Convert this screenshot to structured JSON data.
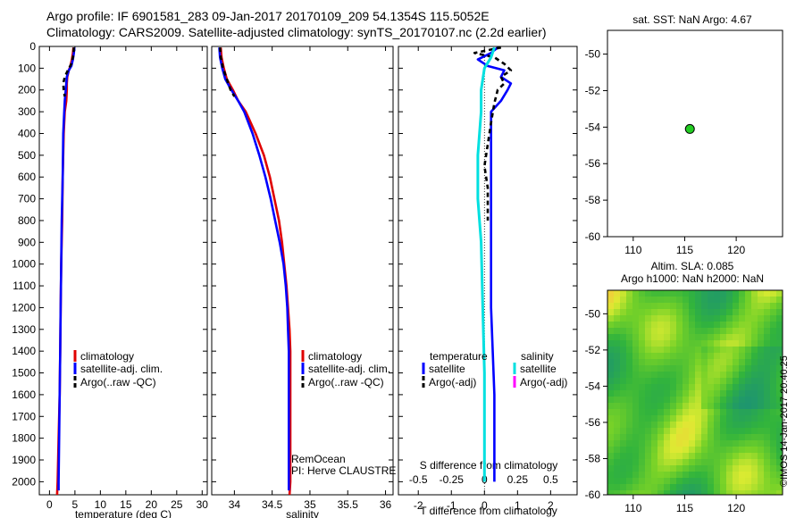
{
  "header": {
    "title_line1": "Argo profile: IF 6901581_283 09-Jan-2017 20170109_209 54.1354S 115.5052E",
    "title_line2": "Climatology: CARS2009. Satellite-adjusted climatology: synTS_20170107.nc (2.2d earlier)"
  },
  "colors": {
    "climatology": "#e00000",
    "satellite_adj": "#0000ff",
    "argo": "#000000",
    "satellite_cyan": "#00e0e0",
    "argo_magenta": "#ff00ff",
    "marker": "#22cc22"
  },
  "credit_imos": "©IMOS 14-Jan-2017 20:40:25",
  "depth_axis": {
    "ticks": [
      0,
      100,
      200,
      300,
      400,
      500,
      600,
      700,
      800,
      900,
      1000,
      1100,
      1200,
      1300,
      1400,
      1500,
      1600,
      1700,
      1800,
      1900,
      2000
    ],
    "range": [
      0,
      2060
    ]
  },
  "chart_data": [
    {
      "type": "line",
      "id": "temperature",
      "xlabel": "temperature (deg C)",
      "xlim": [
        -2,
        31
      ],
      "xticks": [
        0,
        5,
        10,
        15,
        20,
        25,
        30
      ],
      "legend": [
        "climatology",
        "satellite-adj. clim.",
        "Argo(..raw -QC)"
      ],
      "series": [
        {
          "name": "climatology",
          "style": "red",
          "points": [
            [
              4.7,
              5
            ],
            [
              4.6,
              30
            ],
            [
              4.4,
              60
            ],
            [
              4.1,
              90
            ],
            [
              3.8,
              110
            ],
            [
              3.5,
              140
            ],
            [
              3.4,
              170
            ],
            [
              3.4,
              200
            ],
            [
              3.3,
              250
            ],
            [
              3.0,
              300
            ],
            [
              2.8,
              400
            ],
            [
              2.6,
              600
            ],
            [
              2.5,
              800
            ],
            [
              2.3,
              1000
            ],
            [
              2.2,
              1200
            ],
            [
              2.1,
              1400
            ],
            [
              2.0,
              1600
            ],
            [
              1.8,
              1800
            ],
            [
              1.6,
              2000
            ],
            [
              1.5,
              2060
            ]
          ]
        },
        {
          "name": "satellite-adj. clim.",
          "style": "blue",
          "points": [
            [
              4.9,
              5
            ],
            [
              4.8,
              30
            ],
            [
              4.6,
              60
            ],
            [
              4.3,
              90
            ],
            [
              3.8,
              110
            ],
            [
              3.4,
              140
            ],
            [
              3.3,
              170
            ],
            [
              3.2,
              200
            ],
            [
              3.0,
              250
            ],
            [
              2.9,
              300
            ],
            [
              2.7,
              400
            ],
            [
              2.6,
              600
            ],
            [
              2.4,
              800
            ],
            [
              2.3,
              1000
            ],
            [
              2.2,
              1200
            ],
            [
              2.1,
              1400
            ],
            [
              2.0,
              1600
            ],
            [
              1.9,
              1800
            ],
            [
              1.8,
              2000
            ],
            [
              1.8,
              2040
            ]
          ]
        },
        {
          "name": "Argo(..raw -QC)",
          "style": "dash",
          "points": [
            [
              4.8,
              5
            ],
            [
              4.7,
              40
            ],
            [
              4.3,
              80
            ],
            [
              3.6,
              110
            ],
            [
              3.0,
              140
            ],
            [
              2.7,
              170
            ],
            [
              2.8,
              200
            ],
            [
              3.0,
              230
            ]
          ]
        }
      ]
    },
    {
      "type": "line",
      "id": "salinity",
      "xlabel": "salinity",
      "xlim": [
        33.7,
        36.1
      ],
      "xticks": [
        34,
        34.5,
        35,
        35.5,
        36
      ],
      "legend": [
        "climatology",
        "satellite-adj. clim.",
        "Argo(..raw -QC)"
      ],
      "annotation": [
        "RemOcean",
        "PI: Herve CLAUSTRE"
      ],
      "series": [
        {
          "name": "climatology",
          "style": "red",
          "points": [
            [
              33.82,
              5
            ],
            [
              33.83,
              50
            ],
            [
              33.86,
              100
            ],
            [
              33.9,
              150
            ],
            [
              33.98,
              200
            ],
            [
              34.05,
              250
            ],
            [
              34.15,
              300
            ],
            [
              34.28,
              400
            ],
            [
              34.39,
              500
            ],
            [
              34.47,
              600
            ],
            [
              34.53,
              700
            ],
            [
              34.59,
              800
            ],
            [
              34.63,
              900
            ],
            [
              34.66,
              1000
            ],
            [
              34.69,
              1100
            ],
            [
              34.71,
              1200
            ],
            [
              34.73,
              1300
            ],
            [
              34.74,
              1400
            ],
            [
              34.74,
              1600
            ],
            [
              34.74,
              1800
            ],
            [
              34.74,
              2000
            ],
            [
              34.73,
              2060
            ]
          ]
        },
        {
          "name": "satellite-adj. clim.",
          "style": "blue",
          "points": [
            [
              33.8,
              5
            ],
            [
              33.81,
              50
            ],
            [
              33.84,
              100
            ],
            [
              33.88,
              150
            ],
            [
              33.96,
              200
            ],
            [
              34.05,
              250
            ],
            [
              34.13,
              300
            ],
            [
              34.24,
              400
            ],
            [
              34.33,
              500
            ],
            [
              34.41,
              600
            ],
            [
              34.48,
              700
            ],
            [
              34.54,
              800
            ],
            [
              34.6,
              900
            ],
            [
              34.65,
              1000
            ],
            [
              34.68,
              1100
            ],
            [
              34.7,
              1200
            ],
            [
              34.71,
              1300
            ],
            [
              34.72,
              1400
            ],
            [
              34.72,
              1600
            ],
            [
              34.72,
              1800
            ],
            [
              34.72,
              2000
            ],
            [
              34.72,
              2040
            ]
          ]
        },
        {
          "name": "Argo(..raw -QC)",
          "style": "dash",
          "points": [
            [
              33.81,
              5
            ],
            [
              33.82,
              50
            ],
            [
              33.85,
              100
            ],
            [
              33.9,
              150
            ],
            [
              33.95,
              200
            ],
            [
              34.0,
              230
            ]
          ]
        }
      ]
    },
    {
      "type": "line",
      "id": "difference",
      "xlabel": "T difference from climatology",
      "xlabel_top": "S difference from climatology",
      "xlim": [
        -2.6,
        2.8
      ],
      "xticks": [
        -2,
        -1,
        0,
        1,
        2
      ],
      "xticks_top": [
        -0.5,
        -0.25,
        0,
        0.25,
        0.5
      ],
      "legend_headers": [
        "temperature",
        "salinity"
      ],
      "legend": [
        "satellite",
        "Argo(-adj)",
        "satellite",
        "Argo(-adj)"
      ],
      "series": [
        {
          "name": "satellite",
          "quantity": "temperature",
          "style": "blue",
          "points": [
            [
              0.4,
              5
            ],
            [
              0.2,
              30
            ],
            [
              -0.2,
              60
            ],
            [
              0.1,
              90
            ],
            [
              0.6,
              110
            ],
            [
              0.5,
              140
            ],
            [
              0.8,
              170
            ],
            [
              0.7,
              200
            ],
            [
              0.5,
              250
            ],
            [
              0.2,
              300
            ],
            [
              0.2,
              500
            ],
            [
              0.2,
              800
            ],
            [
              0.2,
              1200
            ],
            [
              0.3,
              1600
            ],
            [
              0.3,
              2000
            ]
          ]
        },
        {
          "name": "Argo(-adj)",
          "quantity": "temperature",
          "style": "dash",
          "points": [
            [
              0.5,
              5
            ],
            [
              -0.3,
              30
            ],
            [
              0.3,
              50
            ],
            [
              0.6,
              80
            ],
            [
              0.8,
              110
            ],
            [
              0.5,
              140
            ],
            [
              0.6,
              170
            ],
            [
              0.4,
              200
            ],
            [
              0.3,
              260
            ],
            [
              0.2,
              350
            ],
            [
              0.1,
              450
            ],
            [
              0.0,
              550
            ],
            [
              0.1,
              650
            ],
            [
              0.1,
              800
            ]
          ]
        },
        {
          "name": "satellite",
          "quantity": "salinity",
          "style": "cyan",
          "points": [
            [
              0.3,
              5
            ],
            [
              0.2,
              50
            ],
            [
              0.0,
              100
            ],
            [
              -0.1,
              200
            ],
            [
              -0.1,
              300
            ],
            [
              -0.2,
              500
            ],
            [
              -0.2,
              700
            ],
            [
              -0.1,
              900
            ],
            [
              -0.05,
              1200
            ],
            [
              0.0,
              1500
            ],
            [
              0.0,
              2000
            ]
          ]
        }
      ]
    },
    {
      "type": "scatter",
      "id": "location",
      "title": "sat. SST: NaN Argo: 4.67",
      "xlim": [
        107.5,
        124.5
      ],
      "ylim": [
        -60,
        -48.7
      ],
      "xticks": [
        110,
        115,
        120
      ],
      "yticks": [
        -50,
        -52,
        -54,
        -56,
        -58,
        -60
      ],
      "points": [
        [
          115.5,
          -54.1
        ]
      ]
    },
    {
      "type": "heatmap",
      "id": "sla",
      "title_line1": "Altim. SLA: 0.085",
      "title_line2": "Argo h1000: NaN h2000: NaN",
      "xlim": [
        107.5,
        124.5
      ],
      "ylim": [
        -60,
        -48.7
      ],
      "xticks": [
        110,
        115,
        120
      ],
      "yticks": [
        -50,
        -52,
        -54,
        -56,
        -58,
        -60
      ]
    }
  ]
}
